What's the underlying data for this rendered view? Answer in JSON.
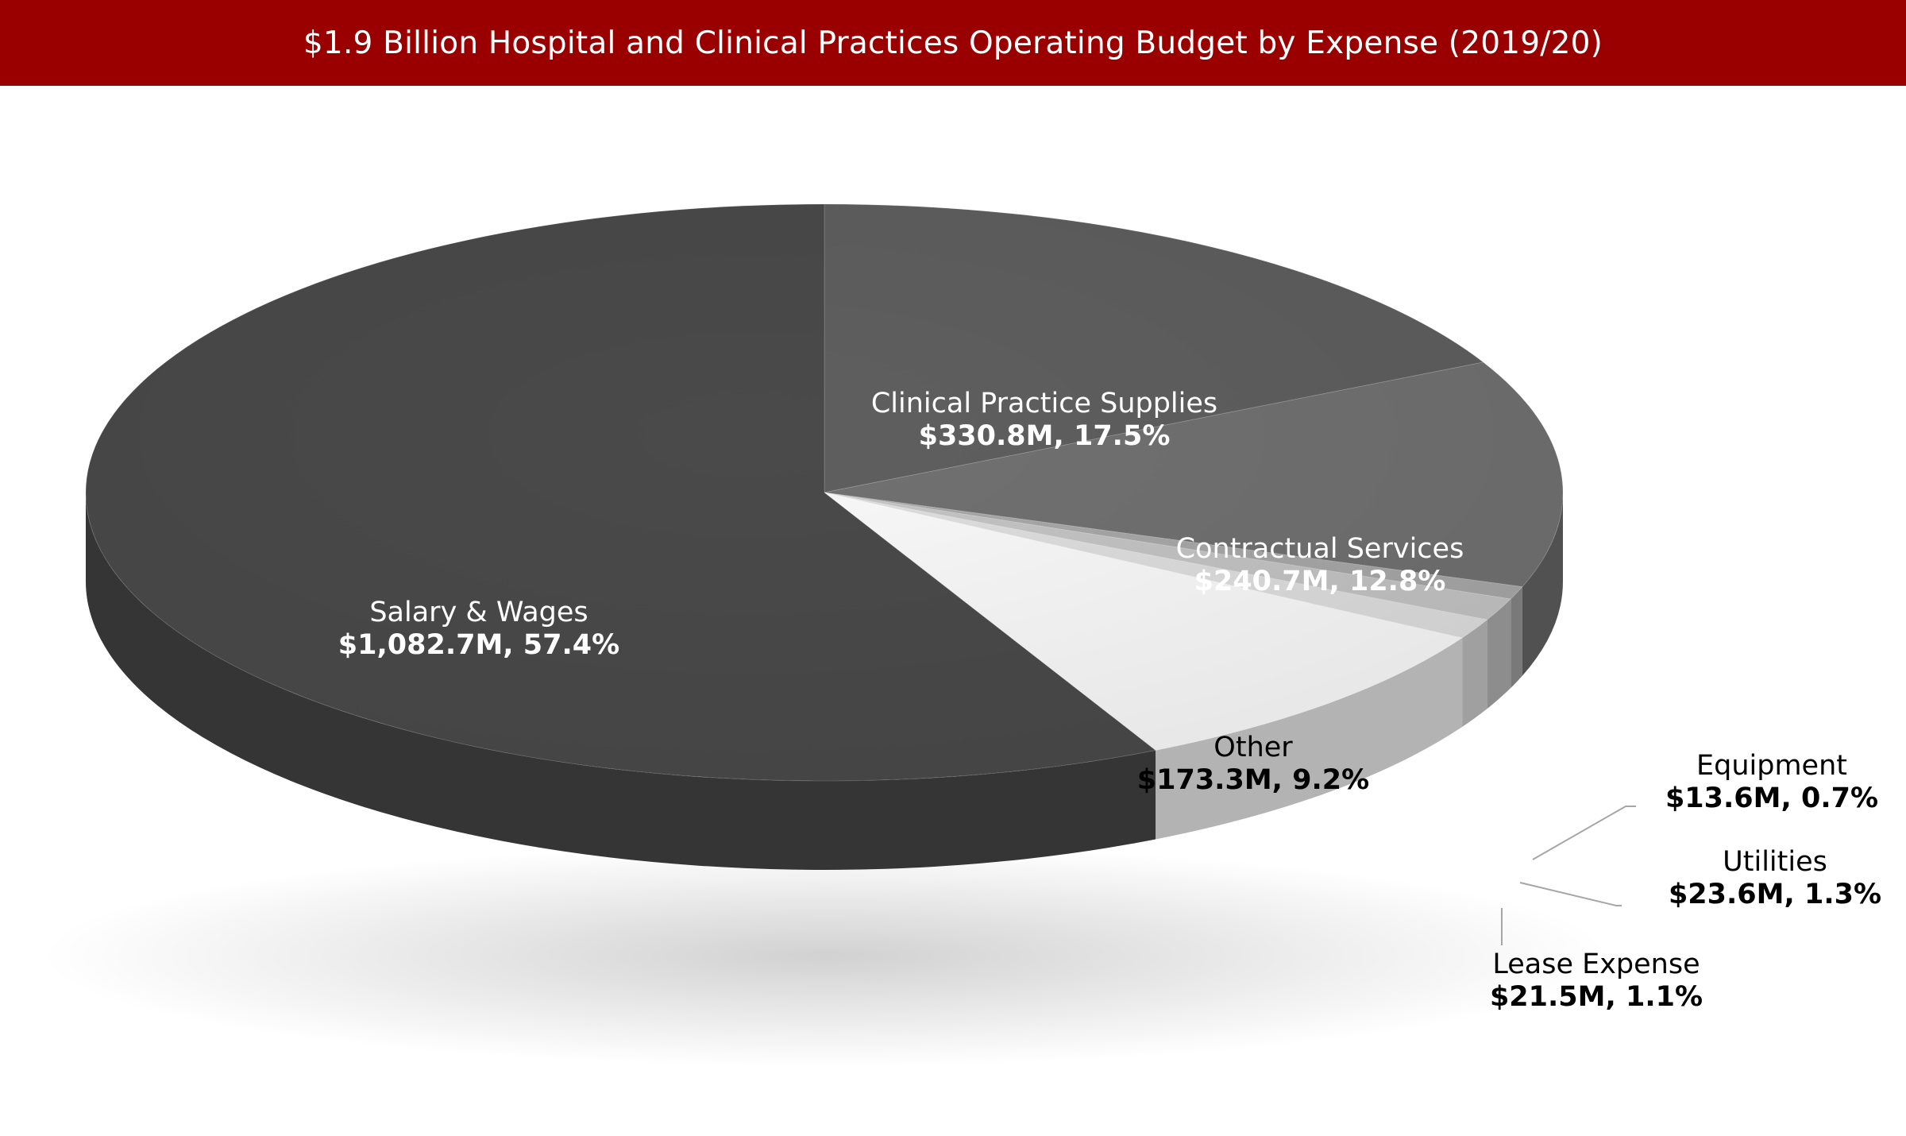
{
  "chart_data": {
    "type": "pie",
    "title": "$1.9 Billion Hospital and Clinical Practices Operating Budget by Expense (2019/20)",
    "slices": [
      {
        "name": "Clinical Practice Supplies",
        "value_label": "$330.8M, 17.5%",
        "value": 330.8,
        "percent": 17.5,
        "color": "#5f5f5f"
      },
      {
        "name": "Contractual Services",
        "value_label": "$240.7M, 12.8%",
        "value": 240.7,
        "percent": 12.8,
        "color": "#717171"
      },
      {
        "name": "Equipment",
        "value_label": "$13.6M, 0.7%",
        "value": 13.6,
        "percent": 0.7,
        "color": "#a8a8a8"
      },
      {
        "name": "Utilities",
        "value_label": "$23.6M, 1.3%",
        "value": 23.6,
        "percent": 1.3,
        "color": "#c4c4c4"
      },
      {
        "name": "Lease Expense",
        "value_label": "$21.5M, 1.1%",
        "value": 21.5,
        "percent": 1.1,
        "color": "#dedede"
      },
      {
        "name": "Other",
        "value_label": "$173.3M, 9.2%",
        "value": 173.3,
        "percent": 9.2,
        "color": "#f9f9f9"
      },
      {
        "name": "Salary & Wages",
        "value_label": "$1,082.7M, 57.4%",
        "value": 1082.7,
        "percent": 57.4,
        "color": "#4a4a4a"
      }
    ]
  }
}
